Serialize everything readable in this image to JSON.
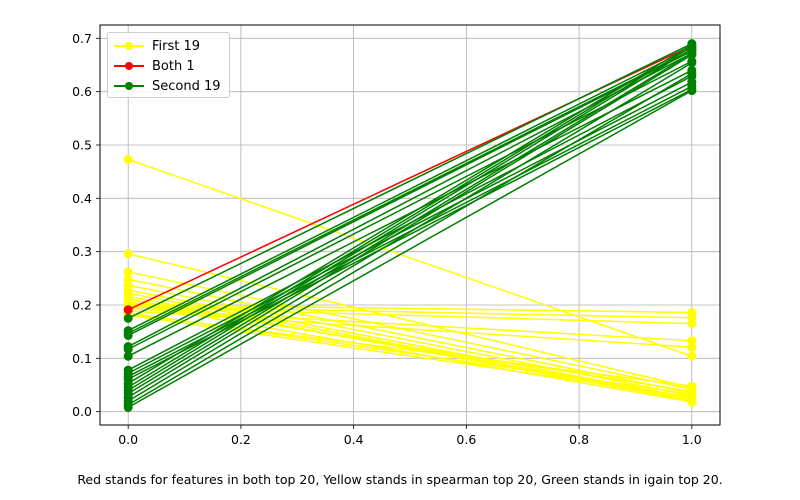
{
  "chart_data": {
    "type": "line",
    "title": "",
    "xlabel": "",
    "ylabel": "",
    "xlim": [
      -0.05,
      1.05
    ],
    "ylim": [
      -0.025,
      0.725
    ],
    "xticks": [
      0.0,
      0.2,
      0.4,
      0.6,
      0.8,
      1.0
    ],
    "yticks": [
      0.0,
      0.1,
      0.2,
      0.3,
      0.4,
      0.5,
      0.6,
      0.7
    ],
    "xtick_labels": [
      "0.0",
      "0.2",
      "0.4",
      "0.6",
      "0.8",
      "1.0"
    ],
    "ytick_labels": [
      "0.0",
      "0.1",
      "0.2",
      "0.3",
      "0.4",
      "0.5",
      "0.6",
      "0.7"
    ],
    "grid": true,
    "legend_position": "top-left",
    "x": [
      0,
      1
    ],
    "groups": [
      {
        "name": "First 19",
        "color": "#ffff00",
        "lines": [
          [
            0.473,
            0.104
          ],
          [
            0.296,
            0.045
          ],
          [
            0.262,
            0.042
          ],
          [
            0.248,
            0.035
          ],
          [
            0.237,
            0.03
          ],
          [
            0.228,
            0.025
          ],
          [
            0.222,
            0.022
          ],
          [
            0.216,
            0.02
          ],
          [
            0.211,
            0.027
          ],
          [
            0.206,
            0.038
          ],
          [
            0.203,
            0.018
          ],
          [
            0.201,
            0.186
          ],
          [
            0.198,
            0.176
          ],
          [
            0.196,
            0.165
          ],
          [
            0.193,
            0.133
          ],
          [
            0.189,
            0.121
          ],
          [
            0.185,
            0.033
          ],
          [
            0.183,
            0.048
          ],
          [
            0.181,
            0.028
          ]
        ]
      },
      {
        "name": "Both 1",
        "color": "#ff0000",
        "lines": [
          [
            0.191,
            0.686
          ]
        ]
      },
      {
        "name": "Second 19",
        "color": "#008000",
        "lines": [
          [
            0.175,
            0.69
          ],
          [
            0.152,
            0.683
          ],
          [
            0.147,
            0.678
          ],
          [
            0.143,
            0.676
          ],
          [
            0.122,
            0.672
          ],
          [
            0.117,
            0.657
          ],
          [
            0.104,
            0.64
          ],
          [
            0.078,
            0.629
          ],
          [
            0.072,
            0.618
          ],
          [
            0.066,
            0.61
          ],
          [
            0.061,
            0.604
          ],
          [
            0.053,
            0.688
          ],
          [
            0.046,
            0.684
          ],
          [
            0.04,
            0.68
          ],
          [
            0.034,
            0.672
          ],
          [
            0.027,
            0.669
          ],
          [
            0.02,
            0.654
          ],
          [
            0.013,
            0.634
          ],
          [
            0.008,
            0.602
          ]
        ]
      }
    ]
  },
  "legend": {
    "items": [
      {
        "label": "First 19",
        "color": "#ffff00"
      },
      {
        "label": "Both 1",
        "color": "#ff0000"
      },
      {
        "label": "Second 19",
        "color": "#008000"
      }
    ]
  },
  "caption": "Red stands for features in both top 20, Yellow stands in spearman top 20, Green stands in igain top 20."
}
